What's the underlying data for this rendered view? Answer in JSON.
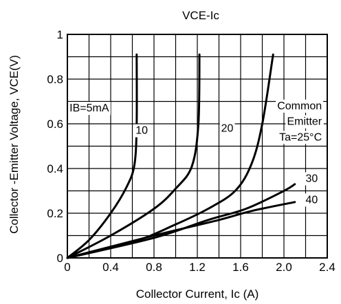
{
  "chart_data": {
    "type": "line",
    "title": "VCE-Ic",
    "xlabel": "Collector Current, Ic (A)",
    "ylabel": "Collector -Emitter Voltage, VCE(V)",
    "xlim": [
      0,
      2.4
    ],
    "ylim": [
      0,
      1.0
    ],
    "x_ticks": [
      "0",
      "0.4",
      "0.8",
      "1.2",
      "1.6",
      "2.0",
      "2.4"
    ],
    "y_ticks": [
      "0",
      "0.2",
      "0.4",
      "0.6",
      "0.8",
      "1"
    ],
    "grid": true,
    "series": [
      {
        "name": "IB=5mA",
        "points": [
          [
            0,
            0
          ],
          [
            0.2,
            0.08
          ],
          [
            0.4,
            0.2
          ],
          [
            0.55,
            0.32
          ],
          [
            0.62,
            0.42
          ],
          [
            0.64,
            0.6
          ],
          [
            0.64,
            0.91
          ]
        ]
      },
      {
        "name": "10",
        "points": [
          [
            0,
            0
          ],
          [
            0.4,
            0.1
          ],
          [
            0.8,
            0.22
          ],
          [
            1.0,
            0.31
          ],
          [
            1.15,
            0.41
          ],
          [
            1.21,
            0.6
          ],
          [
            1.22,
            0.91
          ]
        ]
      },
      {
        "name": "20",
        "points": [
          [
            0,
            0
          ],
          [
            0.6,
            0.07
          ],
          [
            1.0,
            0.15
          ],
          [
            1.3,
            0.22
          ],
          [
            1.55,
            0.3
          ],
          [
            1.7,
            0.42
          ],
          [
            1.8,
            0.6
          ],
          [
            1.9,
            0.91
          ]
        ]
      },
      {
        "name": "30",
        "points": [
          [
            0,
            0
          ],
          [
            0.8,
            0.09
          ],
          [
            1.3,
            0.17
          ],
          [
            1.65,
            0.22
          ],
          [
            2.0,
            0.3
          ],
          [
            2.1,
            0.33
          ]
        ]
      },
      {
        "name": "40",
        "points": [
          [
            0,
            0
          ],
          [
            0.8,
            0.1
          ],
          [
            1.4,
            0.17
          ],
          [
            1.7,
            0.21
          ],
          [
            2.1,
            0.25
          ]
        ]
      }
    ],
    "series_labels": [
      {
        "text": "IB=5mA",
        "x": 0.02,
        "y": 0.655
      },
      {
        "text": "10",
        "x": 0.63,
        "y": 0.555
      },
      {
        "text": "20",
        "x": 1.42,
        "y": 0.565
      },
      {
        "text": "30",
        "x": 2.2,
        "y": 0.34
      },
      {
        "text": "40",
        "x": 2.2,
        "y": 0.245
      }
    ],
    "annotations": [
      {
        "text": "Common",
        "x": 2.35,
        "y": 0.665
      },
      {
        "text": "Emitter",
        "x": 2.35,
        "y": 0.595
      },
      {
        "text": "Ta=25°C",
        "x": 2.35,
        "y": 0.525
      }
    ]
  }
}
